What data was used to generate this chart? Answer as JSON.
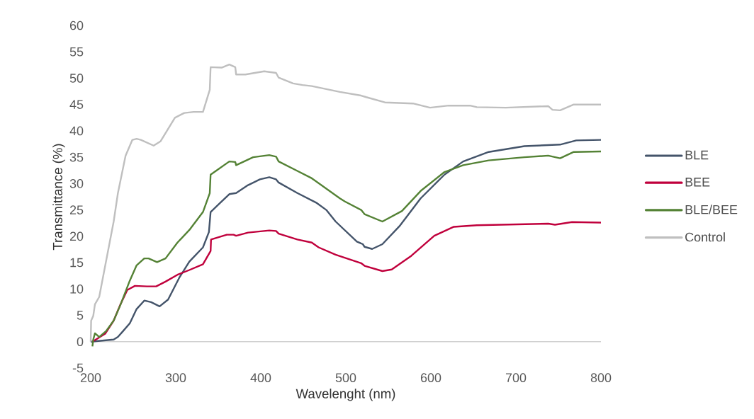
{
  "chart_data": {
    "type": "line",
    "xlabel": "Wavelenght (nm)",
    "ylabel": "Transmittance (%)",
    "xlim": [
      200,
      800
    ],
    "ylim": [
      -5,
      60
    ],
    "xticks": [
      200,
      300,
      400,
      500,
      600,
      700,
      800
    ],
    "yticks": [
      -5,
      0,
      5,
      10,
      15,
      20,
      25,
      30,
      35,
      40,
      45,
      50,
      55,
      60
    ],
    "legend": "right",
    "series": [
      {
        "name": "BLE",
        "color": "#44546a",
        "x": [
          200,
          227,
          232,
          238,
          246,
          254,
          263,
          271,
          281,
          291,
          304,
          316,
          332,
          339,
          341,
          352,
          363,
          371,
          385,
          399,
          410,
          418,
          421,
          443,
          466,
          477,
          488,
          513,
          520,
          522,
          531,
          543,
          563,
          588,
          616,
          638,
          668,
          710,
          752,
          771,
          800
        ],
        "values": [
          0,
          0.4,
          0.9,
          2,
          3.5,
          6.2,
          7.8,
          7.5,
          6.7,
          8,
          12.1,
          15.2,
          17.9,
          20.8,
          24.6,
          26.3,
          28,
          28.2,
          29.7,
          30.8,
          31.2,
          30.8,
          30.2,
          28.2,
          26.3,
          25,
          22.8,
          19,
          18.5,
          18,
          17.6,
          18.5,
          21.9,
          27.2,
          31.7,
          34.2,
          36,
          37.1,
          37.4,
          38.2,
          38.3
        ]
      },
      {
        "name": "BEE",
        "color": "#c0003c",
        "x": [
          202,
          206,
          217,
          227,
          235,
          243,
          252,
          266,
          277,
          288,
          302,
          316,
          332,
          341,
          341.5,
          360,
          368,
          371,
          385,
          410,
          418,
          421,
          443,
          460,
          468,
          488,
          518,
          522,
          543,
          554,
          577,
          604,
          627,
          654,
          738,
          746,
          766,
          800
        ],
        "values": [
          0,
          0.4,
          1.5,
          4,
          7.1,
          9.8,
          10.6,
          10.5,
          10.5,
          11.4,
          12.7,
          13.6,
          14.7,
          17.2,
          19.4,
          20.3,
          20.3,
          20.1,
          20.7,
          21.1,
          21,
          20.5,
          19.4,
          18.8,
          17.9,
          16.5,
          14.9,
          14.4,
          13.4,
          13.7,
          16.3,
          20.1,
          21.8,
          22.1,
          22.4,
          22.2,
          22.7,
          22.6
        ]
      },
      {
        "name": "BLE/BEE",
        "color": "#548235",
        "x": [
          202,
          203,
          205,
          210,
          218,
          227,
          235,
          246,
          254,
          263,
          268,
          278,
          288,
          302,
          316,
          332,
          340,
          341,
          349,
          363,
          370,
          371,
          391,
          410,
          418,
          421,
          443,
          460,
          493,
          499,
          518,
          522,
          543,
          566,
          588,
          616,
          638,
          668,
          710,
          738,
          752,
          768,
          800
        ],
        "values": [
          -0.9,
          0.4,
          1.6,
          0.9,
          2,
          4,
          7,
          11.6,
          14.5,
          15.8,
          15.8,
          15.1,
          15.8,
          18.8,
          21.2,
          24.6,
          28.2,
          31.7,
          32.6,
          34.2,
          34.1,
          33.5,
          35,
          35.4,
          35.1,
          34.2,
          32.4,
          31,
          27.2,
          26.6,
          25,
          24.2,
          22.8,
          24.8,
          28.6,
          32.2,
          33.5,
          34.4,
          35,
          35.3,
          34.8,
          36,
          36.1
        ]
      },
      {
        "name": "Control",
        "color": "#bfbfbf",
        "x": [
          200,
          200.5,
          203,
          205,
          210,
          227,
          232,
          241,
          249,
          254,
          259,
          274,
          282,
          299,
          310,
          321,
          332,
          340,
          341,
          354,
          363,
          370,
          371,
          382,
          404,
          418,
          421,
          438,
          449,
          460,
          493,
          518,
          524,
          546,
          579,
          599,
          621,
          646,
          654,
          688,
          738,
          743,
          752,
          768,
          800
        ],
        "values": [
          0,
          4,
          4.9,
          7.1,
          8.5,
          22.8,
          28.2,
          35.3,
          38.3,
          38.5,
          38.3,
          37.2,
          38,
          42.5,
          43.4,
          43.6,
          43.6,
          47.8,
          52.1,
          52,
          52.6,
          52.1,
          50.7,
          50.7,
          51.3,
          51,
          50.1,
          49,
          48.7,
          48.5,
          47.4,
          46.7,
          46.4,
          45.4,
          45.2,
          44.4,
          44.8,
          44.8,
          44.5,
          44.4,
          44.7,
          44,
          43.9,
          45,
          45
        ]
      }
    ]
  }
}
